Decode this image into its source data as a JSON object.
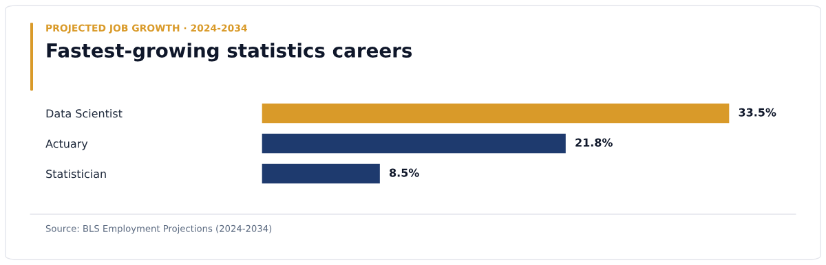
{
  "chart_data": {
    "type": "bar",
    "orientation": "horizontal",
    "subtitle": "PROJECTED JOB GROWTH · 2024-2034",
    "title": "Fastest-growing statistics careers",
    "categories": [
      "Data Scientist",
      "Actuary",
      "Statistician"
    ],
    "values": [
      33.5,
      21.8,
      8.5
    ],
    "colors": [
      "#d99a29",
      "#1e3a6e",
      "#1e3a6e"
    ],
    "value_labels": [
      "33.5%",
      "21.8%",
      "8.5%"
    ],
    "annotations": [
      "Source: BLS Employment Projections (2024-2034)"
    ],
    "grid": false,
    "legend": false
  }
}
